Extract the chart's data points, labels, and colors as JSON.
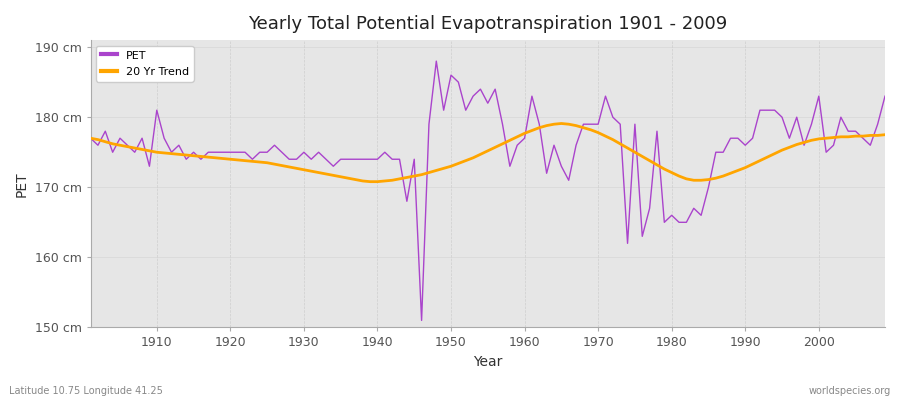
{
  "title": "Yearly Total Potential Evapotranspiration 1901 - 2009",
  "xlabel": "Year",
  "ylabel": "PET",
  "subtitle_left": "Latitude 10.75 Longitude 41.25",
  "subtitle_right": "worldspecies.org",
  "pet_color": "#AA44CC",
  "trend_color": "#FFA500",
  "fig_bg_color": "#FFFFFF",
  "plot_bg_color": "#E6E6E6",
  "ylim": [
    150,
    191
  ],
  "xlim": [
    1901,
    2009
  ],
  "yticks": [
    150,
    160,
    170,
    180,
    190
  ],
  "ytick_labels": [
    "150 cm",
    "160 cm",
    "170 cm",
    "180 cm",
    "190 cm"
  ],
  "xticks": [
    1910,
    1920,
    1930,
    1940,
    1950,
    1960,
    1970,
    1980,
    1990,
    2000
  ],
  "pet_data": [
    177,
    176,
    178,
    175,
    177,
    176,
    175,
    177,
    173,
    181,
    177,
    175,
    176,
    174,
    175,
    174,
    175,
    175,
    175,
    175,
    175,
    175,
    174,
    175,
    175,
    176,
    175,
    174,
    174,
    175,
    174,
    175,
    174,
    173,
    174,
    174,
    174,
    174,
    174,
    174,
    175,
    174,
    174,
    168,
    174,
    151,
    179,
    188,
    181,
    186,
    185,
    181,
    183,
    184,
    182,
    184,
    179,
    173,
    176,
    177,
    183,
    179,
    172,
    176,
    173,
    171,
    176,
    179,
    179,
    179,
    183,
    180,
    179,
    162,
    179,
    163,
    167,
    178,
    165,
    166,
    165,
    165,
    167,
    166,
    170,
    175,
    175,
    177,
    177,
    176,
    177,
    181,
    181,
    181,
    180,
    177,
    180,
    176,
    179,
    183,
    175,
    176,
    180,
    178,
    178,
    177,
    176,
    179,
    183
  ],
  "trend_data": [
    177.0,
    176.8,
    176.5,
    176.2,
    176.0,
    175.8,
    175.6,
    175.4,
    175.2,
    175.0,
    174.9,
    174.8,
    174.7,
    174.6,
    174.5,
    174.4,
    174.3,
    174.2,
    174.1,
    174.0,
    173.9,
    173.8,
    173.7,
    173.6,
    173.5,
    173.3,
    173.1,
    172.9,
    172.7,
    172.5,
    172.3,
    172.1,
    171.9,
    171.7,
    171.5,
    171.3,
    171.1,
    170.9,
    170.8,
    170.8,
    170.9,
    171.0,
    171.2,
    171.4,
    171.6,
    171.8,
    172.1,
    172.4,
    172.7,
    173.0,
    173.4,
    173.8,
    174.2,
    174.7,
    175.2,
    175.7,
    176.2,
    176.7,
    177.2,
    177.7,
    178.1,
    178.5,
    178.8,
    179.0,
    179.1,
    179.0,
    178.8,
    178.5,
    178.2,
    177.8,
    177.3,
    176.8,
    176.2,
    175.6,
    175.0,
    174.4,
    173.8,
    173.2,
    172.6,
    172.1,
    171.6,
    171.2,
    171.0,
    171.0,
    171.1,
    171.3,
    171.6,
    172.0,
    172.4,
    172.8,
    173.3,
    173.8,
    174.3,
    174.8,
    175.3,
    175.7,
    176.1,
    176.4,
    176.7,
    176.9,
    177.0,
    177.1,
    177.2,
    177.2,
    177.3,
    177.3,
    177.4,
    177.4,
    177.5
  ]
}
